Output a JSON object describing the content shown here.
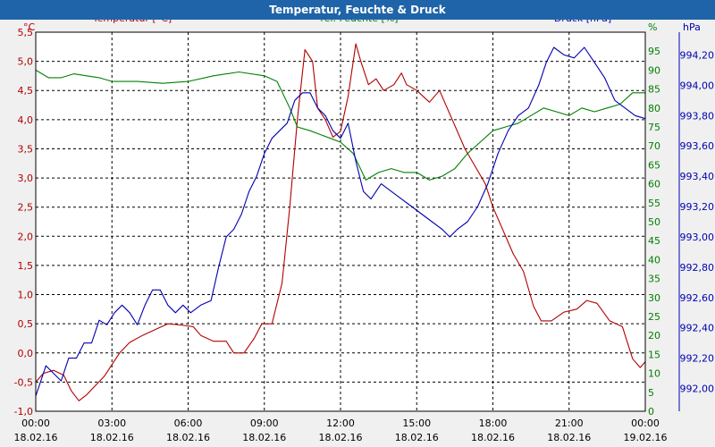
{
  "window": {
    "title": "Temperatur, Feuchte & Druck"
  },
  "chart_data": {
    "type": "line",
    "title": "Temperatur, Feuchte & Druck",
    "colors": {
      "temperature": "#b00000",
      "humidity": "#008000",
      "pressure": "#0000b0",
      "grid": "#000000",
      "plot_bg": "#ffffff",
      "frame_bg": "#f0f0f0",
      "title_bar": "#1f64a8"
    },
    "x": {
      "range_hours": [
        0,
        24
      ],
      "tick_hours": [
        0,
        3,
        6,
        9,
        12,
        15,
        18,
        21,
        24
      ],
      "tick_labels": [
        [
          "00:00",
          "18.02.16"
        ],
        [
          "03:00",
          "18.02.16"
        ],
        [
          "06:00",
          "18.02.16"
        ],
        [
          "09:00",
          "18.02.16"
        ],
        [
          "12:00",
          "18.02.16"
        ],
        [
          "15:00",
          "18.02.16"
        ],
        [
          "18:00",
          "18.02.16"
        ],
        [
          "21:00",
          "18.02.16"
        ],
        [
          "00:00",
          "19.02.16"
        ]
      ]
    },
    "axes": {
      "temperature": {
        "label": "Temperatur [°C]",
        "unit": "°C",
        "range": [
          -1.0,
          5.5
        ],
        "ticks": [
          "-1,0",
          "-0,5",
          "0,0",
          "0,5",
          "1,0",
          "1,5",
          "2,0",
          "2,5",
          "3,0",
          "3,5",
          "4,0",
          "4,5",
          "5,0",
          "5,5"
        ]
      },
      "humidity": {
        "label": "rel. Feuchte [%]",
        "unit": "%",
        "range": [
          0,
          100
        ],
        "ticks": [
          "0",
          "5",
          "10",
          "15",
          "20",
          "25",
          "30",
          "35",
          "40",
          "45",
          "50",
          "55",
          "60",
          "65",
          "70",
          "75",
          "80",
          "85",
          "90",
          "95"
        ]
      },
      "pressure": {
        "label": "Druck [hPa]",
        "unit": "hPa",
        "range": [
          991.85,
          994.35
        ],
        "ticks": [
          "992,00",
          "992,20",
          "992,40",
          "992,60",
          "992,80",
          "993,00",
          "993,20",
          "993,40",
          "993,60",
          "993,80",
          "994,00",
          "994,20"
        ]
      }
    },
    "series": [
      {
        "name": "Temperatur",
        "axis": "temperature",
        "points": [
          [
            0,
            -0.5
          ],
          [
            0.3,
            -0.35
          ],
          [
            0.7,
            -0.3
          ],
          [
            1.1,
            -0.38
          ],
          [
            1.4,
            -0.65
          ],
          [
            1.7,
            -0.82
          ],
          [
            2.0,
            -0.72
          ],
          [
            2.3,
            -0.58
          ],
          [
            2.7,
            -0.4
          ],
          [
            3.0,
            -0.2
          ],
          [
            3.3,
            0.0
          ],
          [
            3.7,
            0.18
          ],
          [
            4.2,
            0.3
          ],
          [
            4.8,
            0.42
          ],
          [
            5.2,
            0.5
          ],
          [
            5.7,
            0.48
          ],
          [
            6.2,
            0.45
          ],
          [
            6.5,
            0.3
          ],
          [
            7.0,
            0.2
          ],
          [
            7.5,
            0.2
          ],
          [
            7.8,
            0.0
          ],
          [
            8.2,
            0.0
          ],
          [
            8.6,
            0.25
          ],
          [
            8.9,
            0.5
          ],
          [
            9.3,
            0.5
          ],
          [
            9.7,
            1.2
          ],
          [
            10.0,
            2.5
          ],
          [
            10.3,
            4.0
          ],
          [
            10.6,
            5.2
          ],
          [
            10.9,
            5.0
          ],
          [
            11.1,
            4.2
          ],
          [
            11.4,
            4.0
          ],
          [
            11.7,
            3.7
          ],
          [
            12.0,
            3.8
          ],
          [
            12.3,
            4.4
          ],
          [
            12.6,
            5.3
          ],
          [
            12.8,
            5.0
          ],
          [
            13.1,
            4.6
          ],
          [
            13.4,
            4.7
          ],
          [
            13.7,
            4.5
          ],
          [
            14.1,
            4.6
          ],
          [
            14.4,
            4.8
          ],
          [
            14.6,
            4.6
          ],
          [
            15.0,
            4.5
          ],
          [
            15.5,
            4.3
          ],
          [
            15.9,
            4.5
          ],
          [
            16.4,
            4.0
          ],
          [
            16.9,
            3.5
          ],
          [
            17.3,
            3.2
          ],
          [
            17.7,
            2.9
          ],
          [
            18.0,
            2.5
          ],
          [
            18.4,
            2.1
          ],
          [
            18.8,
            1.7
          ],
          [
            19.2,
            1.4
          ],
          [
            19.6,
            0.8
          ],
          [
            19.9,
            0.55
          ],
          [
            20.3,
            0.55
          ],
          [
            20.8,
            0.7
          ],
          [
            21.3,
            0.75
          ],
          [
            21.7,
            0.9
          ],
          [
            22.1,
            0.85
          ],
          [
            22.6,
            0.55
          ],
          [
            23.1,
            0.45
          ],
          [
            23.5,
            -0.1
          ],
          [
            23.8,
            -0.25
          ],
          [
            24.0,
            -0.15
          ]
        ]
      },
      {
        "name": "rel. Feuchte",
        "axis": "humidity",
        "points": [
          [
            0,
            90
          ],
          [
            0.5,
            88
          ],
          [
            1.0,
            88
          ],
          [
            1.5,
            89
          ],
          [
            2.0,
            88.5
          ],
          [
            2.5,
            88
          ],
          [
            3.0,
            87
          ],
          [
            4.0,
            87
          ],
          [
            5.0,
            86.5
          ],
          [
            6.0,
            87
          ],
          [
            7.0,
            88.5
          ],
          [
            8.0,
            89.5
          ],
          [
            9.0,
            88.5
          ],
          [
            9.5,
            87
          ],
          [
            10.0,
            80
          ],
          [
            10.3,
            75
          ],
          [
            10.8,
            74
          ],
          [
            11.2,
            73
          ],
          [
            11.6,
            72
          ],
          [
            12.0,
            71
          ],
          [
            12.5,
            68
          ],
          [
            13.0,
            61
          ],
          [
            13.5,
            63
          ],
          [
            14.0,
            64
          ],
          [
            14.5,
            63
          ],
          [
            15.0,
            63
          ],
          [
            15.5,
            61
          ],
          [
            16.0,
            62
          ],
          [
            16.5,
            64
          ],
          [
            17.0,
            68
          ],
          [
            17.5,
            71
          ],
          [
            18.0,
            74
          ],
          [
            18.5,
            75
          ],
          [
            19.0,
            76
          ],
          [
            19.5,
            78
          ],
          [
            20.0,
            80
          ],
          [
            20.5,
            79
          ],
          [
            21.0,
            78
          ],
          [
            21.5,
            80
          ],
          [
            22.0,
            79
          ],
          [
            22.5,
            80
          ],
          [
            23.0,
            81
          ],
          [
            23.5,
            84
          ],
          [
            24.0,
            84
          ]
        ]
      },
      {
        "name": "Druck",
        "axis": "pressure",
        "points": [
          [
            0,
            991.95
          ],
          [
            0.2,
            992.05
          ],
          [
            0.4,
            992.15
          ],
          [
            0.7,
            992.1
          ],
          [
            1.0,
            992.05
          ],
          [
            1.3,
            992.2
          ],
          [
            1.6,
            992.2
          ],
          [
            1.9,
            992.3
          ],
          [
            2.2,
            992.3
          ],
          [
            2.5,
            992.45
          ],
          [
            2.8,
            992.42
          ],
          [
            3.1,
            992.5
          ],
          [
            3.4,
            992.55
          ],
          [
            3.7,
            992.5
          ],
          [
            4.0,
            992.42
          ],
          [
            4.3,
            992.55
          ],
          [
            4.6,
            992.65
          ],
          [
            4.9,
            992.65
          ],
          [
            5.2,
            992.55
          ],
          [
            5.5,
            992.5
          ],
          [
            5.8,
            992.55
          ],
          [
            6.1,
            992.5
          ],
          [
            6.5,
            992.55
          ],
          [
            6.9,
            992.58
          ],
          [
            7.2,
            992.8
          ],
          [
            7.5,
            993.0
          ],
          [
            7.8,
            993.05
          ],
          [
            8.1,
            993.15
          ],
          [
            8.4,
            993.3
          ],
          [
            8.7,
            993.4
          ],
          [
            9.0,
            993.55
          ],
          [
            9.3,
            993.65
          ],
          [
            9.6,
            993.7
          ],
          [
            9.9,
            993.75
          ],
          [
            10.2,
            993.9
          ],
          [
            10.5,
            993.95
          ],
          [
            10.8,
            993.95
          ],
          [
            11.1,
            993.85
          ],
          [
            11.4,
            993.8
          ],
          [
            11.7,
            993.7
          ],
          [
            12.0,
            993.65
          ],
          [
            12.3,
            993.75
          ],
          [
            12.6,
            993.5
          ],
          [
            12.9,
            993.3
          ],
          [
            13.2,
            993.25
          ],
          [
            13.6,
            993.35
          ],
          [
            14.0,
            993.3
          ],
          [
            14.4,
            993.25
          ],
          [
            14.8,
            993.2
          ],
          [
            15.2,
            993.15
          ],
          [
            15.6,
            993.1
          ],
          [
            16.0,
            993.05
          ],
          [
            16.3,
            993.0
          ],
          [
            16.6,
            993.05
          ],
          [
            17.0,
            993.1
          ],
          [
            17.4,
            993.2
          ],
          [
            17.8,
            993.35
          ],
          [
            18.2,
            993.55
          ],
          [
            18.6,
            993.7
          ],
          [
            19.0,
            993.8
          ],
          [
            19.4,
            993.85
          ],
          [
            19.8,
            994.0
          ],
          [
            20.1,
            994.15
          ],
          [
            20.4,
            994.25
          ],
          [
            20.8,
            994.2
          ],
          [
            21.2,
            994.18
          ],
          [
            21.6,
            994.25
          ],
          [
            22.0,
            994.15
          ],
          [
            22.4,
            994.05
          ],
          [
            22.8,
            993.9
          ],
          [
            23.2,
            993.85
          ],
          [
            23.6,
            993.8
          ],
          [
            24.0,
            993.78
          ]
        ]
      }
    ]
  }
}
